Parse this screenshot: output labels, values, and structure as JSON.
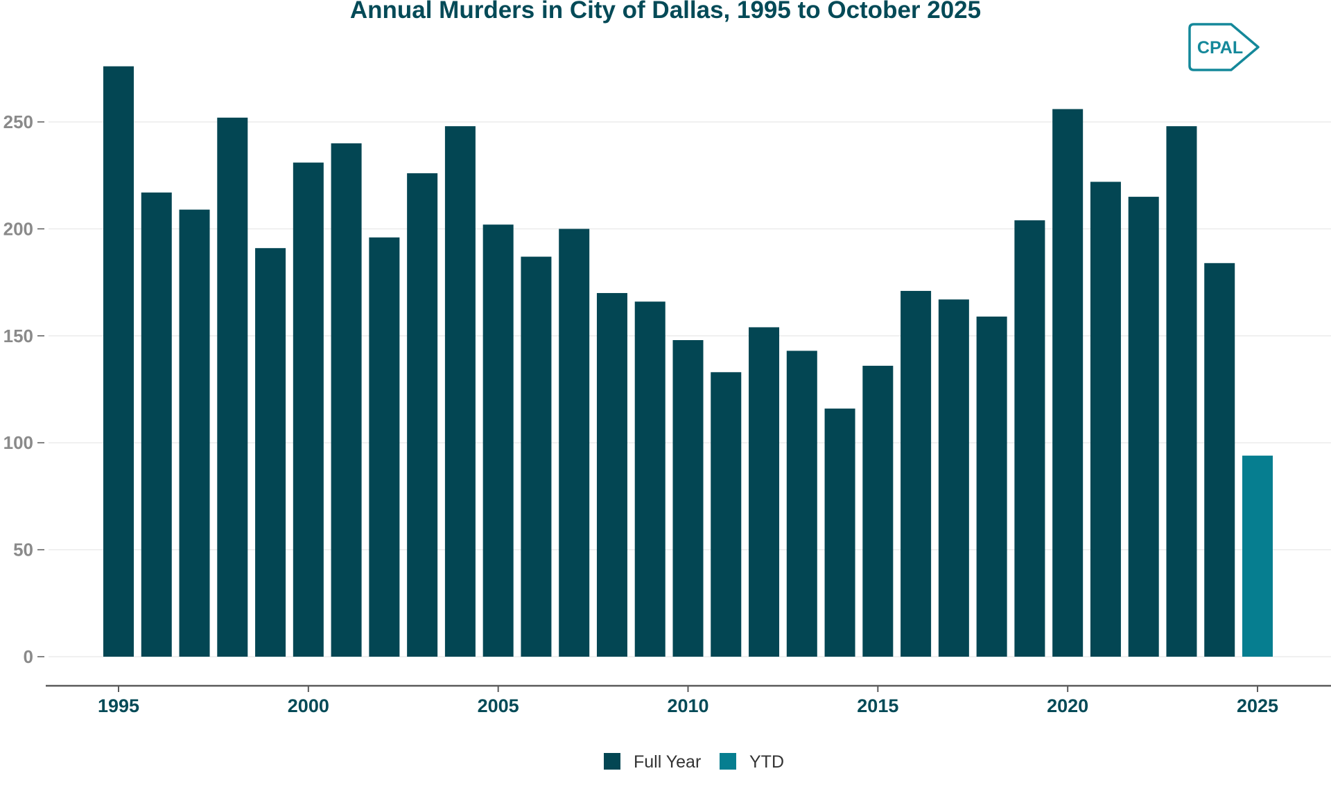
{
  "chart_data": {
    "type": "bar",
    "title": "Annual Murders in City of Dallas, 1995 to October 2025",
    "xlabel": "",
    "ylabel": "",
    "ylim": [
      0,
      280
    ],
    "xlim": [
      1993.2,
      2026.2
    ],
    "grid": true,
    "y_ticks": [
      0,
      50,
      100,
      150,
      200,
      250
    ],
    "y_tick_labels": [
      "0",
      "50",
      "100",
      "150",
      "200",
      "250"
    ],
    "x_ticks": [
      1995,
      2000,
      2005,
      2010,
      2015,
      2020,
      2025
    ],
    "x_tick_labels": [
      "1995",
      "2000",
      "2005",
      "2010",
      "2015",
      "2020",
      "2025"
    ],
    "legend_position": "bottom",
    "colors": {
      "Full Year": "#034653",
      "YTD": "#067e90",
      "title": "#044a57",
      "tick_x": "#044a57",
      "tick_y": "#8a8a8a",
      "grid": "#ebebeb",
      "axis": "#5a5a5a",
      "logo": "#14889a"
    },
    "series": [
      {
        "name": "Full Year",
        "x": [
          1995,
          1996,
          1997,
          1998,
          1999,
          2000,
          2001,
          2002,
          2003,
          2004,
          2005,
          2006,
          2007,
          2008,
          2009,
          2010,
          2011,
          2012,
          2013,
          2014,
          2015,
          2016,
          2017,
          2018,
          2019,
          2020,
          2021,
          2022,
          2023,
          2024
        ],
        "values": [
          276,
          217,
          209,
          252,
          191,
          231,
          240,
          196,
          226,
          248,
          202,
          187,
          200,
          170,
          166,
          148,
          133,
          154,
          143,
          116,
          136,
          171,
          167,
          159,
          204,
          256,
          222,
          215,
          248,
          184
        ]
      },
      {
        "name": "YTD",
        "x": [
          2025
        ],
        "values": [
          94
        ]
      }
    ]
  },
  "logo": {
    "text": "CPAL"
  }
}
